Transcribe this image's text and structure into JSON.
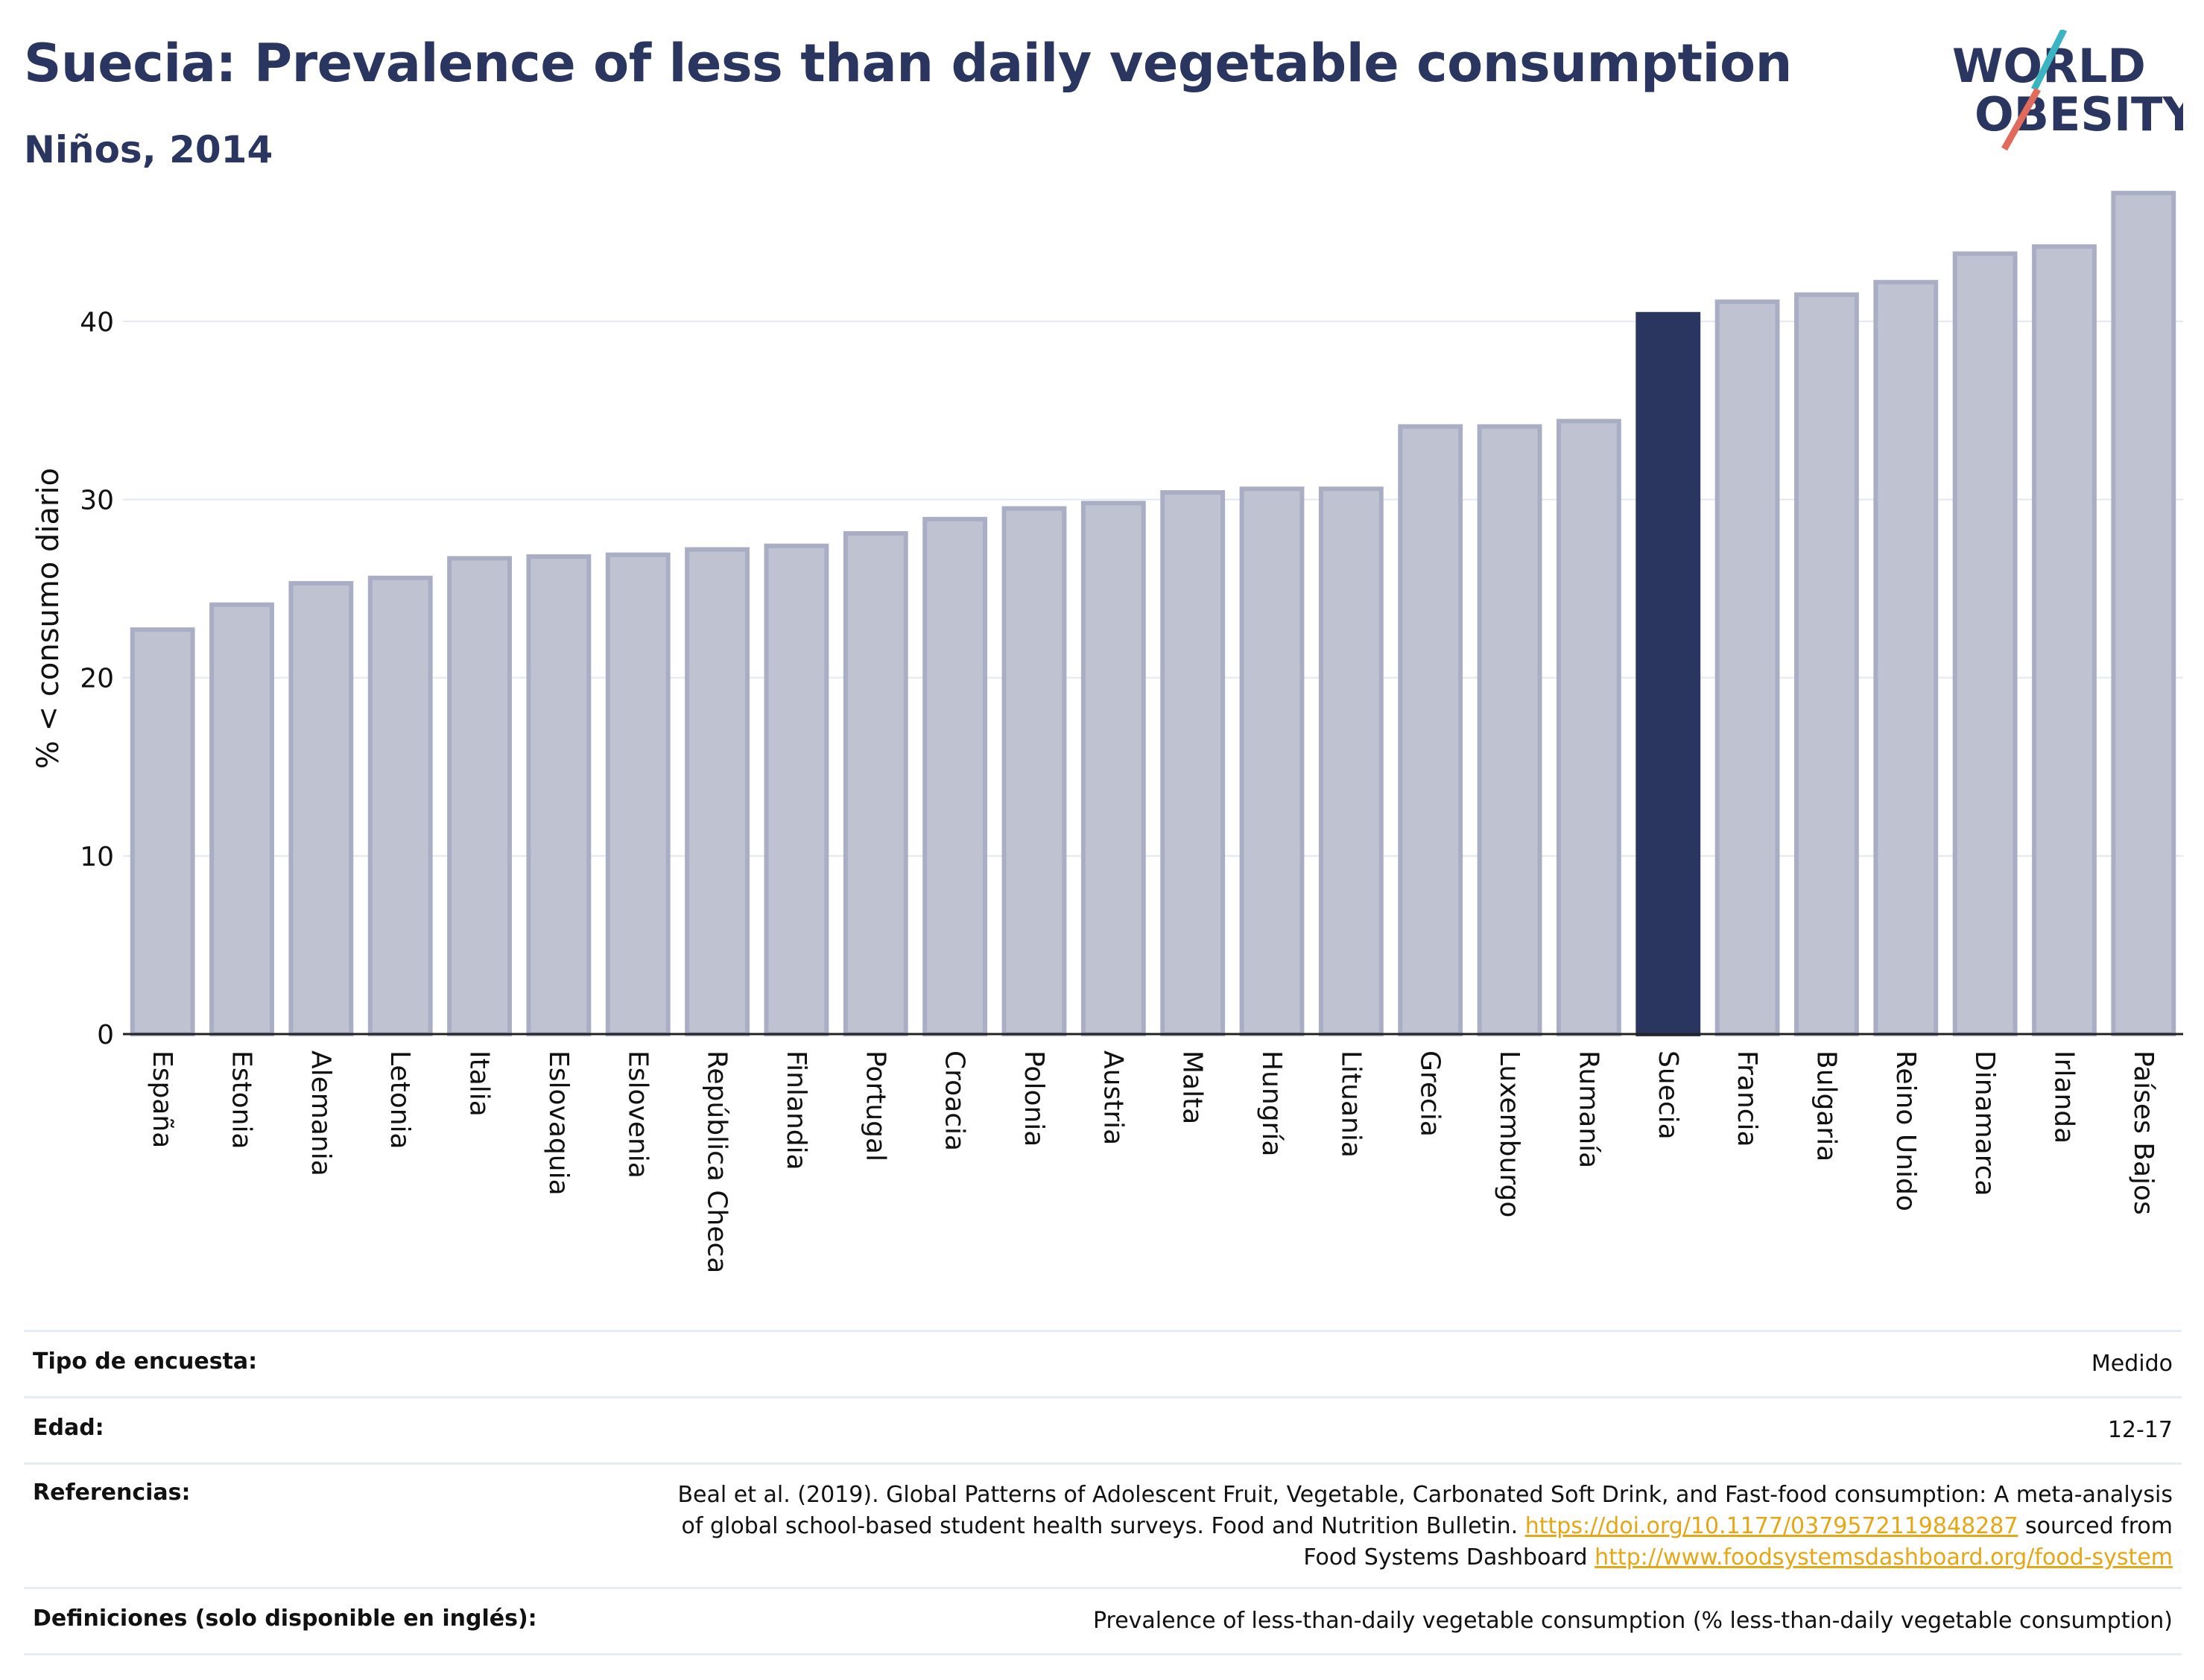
{
  "header": {
    "title": "Suecia: Prevalence of less than daily vegetable consumption",
    "subtitle": "Niños, 2014",
    "logo_line1": "WORLD",
    "logo_line2": "OBESITY"
  },
  "colors": {
    "bar_default": "#bfc3d1",
    "bar_default_border": "#a9aec4",
    "bar_highlight": "#2a3560",
    "title": "#2a3560",
    "link": "#e5a714",
    "logo_teal": "#3bb4c1",
    "logo_coral": "#e06b5c"
  },
  "chart_data": {
    "type": "bar",
    "ylabel": "% < consumo diario",
    "ylim": [
      0,
      48
    ],
    "yticks": [
      0,
      10,
      20,
      30,
      40
    ],
    "grid": true,
    "highlight": "Suecia",
    "categories": [
      "España",
      "Estonia",
      "Alemania",
      "Letonia",
      "Italia",
      "Eslovaquia",
      "Eslovenia",
      "República Checa",
      "Finlandia",
      "Portugal",
      "Croacia",
      "Polonia",
      "Austria",
      "Malta",
      "Hungría",
      "Lituania",
      "Grecia",
      "Luxemburgo",
      "Rumanía",
      "Suecia",
      "Francia",
      "Bulgaria",
      "Reino Unido",
      "Dinamarca",
      "Irlanda",
      "Países Bajos"
    ],
    "values": [
      22.7,
      24.1,
      25.3,
      25.6,
      26.7,
      26.8,
      26.9,
      27.2,
      27.4,
      28.1,
      28.9,
      29.5,
      29.8,
      30.4,
      30.6,
      30.6,
      34.1,
      34.1,
      34.4,
      40.4,
      41.1,
      41.5,
      42.2,
      43.8,
      44.2,
      47.2
    ]
  },
  "info": {
    "survey_label": "Tipo de encuesta:",
    "survey_value": "Medido",
    "age_label": "Edad:",
    "age_value": "12-17",
    "refs_label": "Referencias:",
    "refs_line1": "Beal et al. (2019). Global Patterns of Adolescent Fruit, Vegetable, Carbonated Soft Drink, and Fast-food consumption: A meta-analysis",
    "refs_line2_text": "of global school-based student health surveys. Food and Nutrition Bulletin.",
    "refs_line2_link": "https://doi.org/10.1177/0379572119848287",
    "refs_line2_tail": "sourced from",
    "refs_line3_text": "Food Systems Dashboard",
    "refs_line3_link": "http://www.foodsystemsdashboard.org/food-system",
    "defs_label": "Definiciones (solo disponible en inglés):",
    "defs_value": "Prevalence of less-than-daily vegetable consumption (% less-than-daily vegetable consumption)"
  }
}
